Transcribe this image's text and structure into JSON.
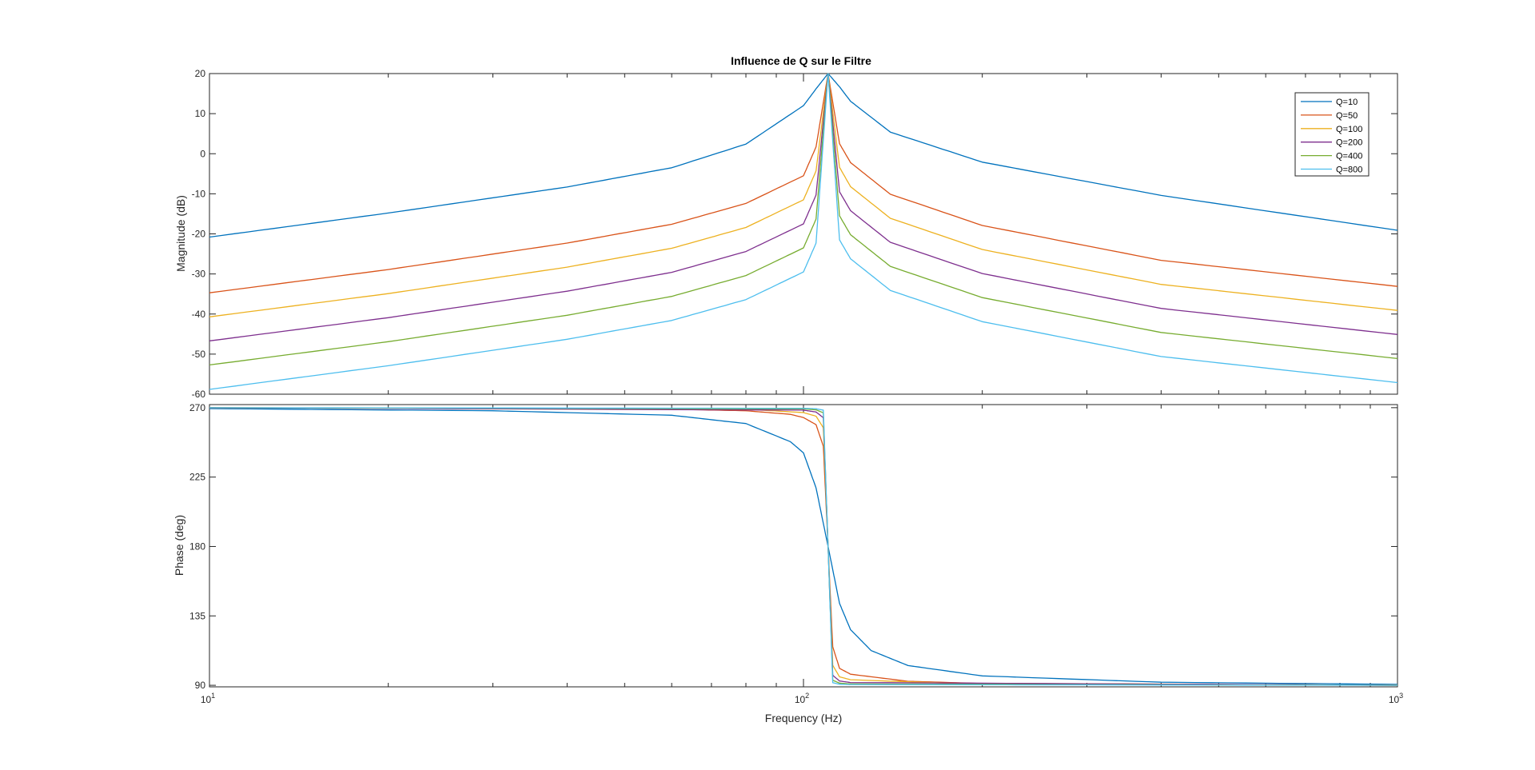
{
  "figure": {
    "title": "Influence de Q sur le  Filtre",
    "xlabel": "Frequency  (Hz)"
  },
  "chart_data": [
    {
      "type": "line",
      "panel": "magnitude",
      "title": "Influence de Q sur le  Filtre",
      "ylabel": "Magnitude (dB)",
      "xscale": "log",
      "xlim": [
        10,
        1000
      ],
      "ylim": [
        -60,
        20
      ],
      "xticks": [
        "10^1",
        "10^2",
        "10^3"
      ],
      "yticks": [
        20,
        10,
        0,
        -10,
        -20,
        -30,
        -40,
        -50,
        -60
      ],
      "grid": false,
      "legend": "top-right",
      "series": [
        {
          "name": "Q=10",
          "color": "#0072BD",
          "x": [
            10,
            20,
            40,
            60,
            80,
            100,
            105,
            110,
            115,
            120,
            140,
            200,
            400,
            1000
          ],
          "y": [
            -20.8,
            -14.8,
            -8.3,
            -3.5,
            2.4,
            12.0,
            16.2,
            20.0,
            16.7,
            13.1,
            5.4,
            -2.1,
            -10.4,
            -19.1
          ]
        },
        {
          "name": "Q=50",
          "color": "#D95319",
          "x": [
            10,
            20,
            40,
            60,
            80,
            100,
            105,
            110,
            115,
            120,
            140,
            200,
            400,
            1000
          ],
          "y": [
            -34.7,
            -28.9,
            -22.3,
            -17.6,
            -12.4,
            -5.5,
            1.7,
            20.0,
            2.5,
            -2.2,
            -10.1,
            -17.9,
            -26.6,
            -33.1
          ]
        },
        {
          "name": "Q=100",
          "color": "#EDB120",
          "x": [
            10,
            20,
            40,
            60,
            80,
            100,
            105,
            110,
            115,
            120,
            140,
            200,
            400,
            1000
          ],
          "y": [
            -40.7,
            -34.9,
            -28.3,
            -23.6,
            -18.4,
            -11.5,
            -4.3,
            20.0,
            -3.4,
            -8.2,
            -16.1,
            -23.9,
            -32.6,
            -39.1
          ]
        },
        {
          "name": "Q=200",
          "color": "#7E2F8E",
          "x": [
            10,
            20,
            40,
            60,
            80,
            100,
            105,
            110,
            115,
            120,
            140,
            200,
            400,
            1000
          ],
          "y": [
            -46.7,
            -40.9,
            -34.3,
            -29.6,
            -24.4,
            -17.5,
            -10.3,
            20.0,
            -9.5,
            -14.2,
            -22.1,
            -29.9,
            -38.6,
            -45.1
          ]
        },
        {
          "name": "Q=400",
          "color": "#77AC30",
          "x": [
            10,
            20,
            40,
            60,
            80,
            100,
            105,
            110,
            115,
            120,
            140,
            200,
            400,
            1000
          ],
          "y": [
            -52.7,
            -46.9,
            -40.3,
            -35.6,
            -30.4,
            -23.5,
            -16.3,
            20.0,
            -15.5,
            -20.2,
            -28.1,
            -35.9,
            -44.6,
            -51.1
          ]
        },
        {
          "name": "Q=800",
          "color": "#4DBEEE",
          "x": [
            10,
            20,
            40,
            60,
            80,
            100,
            105,
            110,
            115,
            120,
            140,
            200,
            400,
            1000
          ],
          "y": [
            -58.8,
            -52.9,
            -46.3,
            -41.6,
            -36.4,
            -29.5,
            -22.3,
            20.0,
            -21.5,
            -26.2,
            -34.1,
            -41.9,
            -50.6,
            -57.1
          ]
        }
      ]
    },
    {
      "type": "line",
      "panel": "phase",
      "ylabel": "Phase (deg)",
      "xlabel": "Frequency  (Hz)",
      "xscale": "log",
      "xlim": [
        10,
        1000
      ],
      "ylim": [
        89,
        272
      ],
      "xticks": [
        "10^1",
        "10^2",
        "10^3"
      ],
      "yticks": [
        270,
        225,
        180,
        135,
        90
      ],
      "grid": false,
      "series": [
        {
          "name": "Q=10",
          "color": "#0072BD",
          "x": [
            10,
            30,
            60,
            80,
            95,
            100,
            105,
            110,
            115,
            120,
            130,
            150,
            200,
            400,
            1000
          ],
          "y": [
            269.4,
            268.0,
            265.1,
            259.7,
            248.0,
            240.7,
            218.0,
            180.0,
            143.1,
            126.1,
            112.5,
            102.8,
            96.1,
            92.0,
            90.6
          ]
        },
        {
          "name": "Q=50",
          "color": "#D95319",
          "x": [
            10,
            60,
            80,
            95,
            100,
            105,
            108,
            110,
            112,
            115,
            120,
            150,
            200,
            1000
          ],
          "y": [
            269.9,
            269.0,
            268.0,
            265.7,
            263.6,
            259.0,
            245.0,
            180.0,
            115.0,
            101.0,
            97.2,
            92.6,
            91.2,
            90.1
          ]
        },
        {
          "name": "Q=100",
          "color": "#EDB120",
          "x": [
            10,
            80,
            100,
            105,
            108,
            110,
            112,
            115,
            120,
            200,
            1000
          ],
          "y": [
            270.0,
            269.0,
            266.8,
            264.5,
            257.0,
            180.0,
            103.0,
            95.5,
            93.6,
            90.6,
            90.1
          ]
        },
        {
          "name": "Q=200",
          "color": "#7E2F8E",
          "x": [
            10,
            100,
            105,
            108,
            110,
            112,
            115,
            120,
            1000
          ],
          "y": [
            270.0,
            268.4,
            267.2,
            263.5,
            180.0,
            96.5,
            92.8,
            91.8,
            90.0
          ]
        },
        {
          "name": "Q=400",
          "color": "#77AC30",
          "x": [
            10,
            100,
            105,
            108,
            110,
            112,
            115,
            120,
            1000
          ],
          "y": [
            270.0,
            269.2,
            268.6,
            266.7,
            180.0,
            93.3,
            91.4,
            90.9,
            90.0
          ]
        },
        {
          "name": "Q=800",
          "color": "#4DBEEE",
          "x": [
            10,
            100,
            105,
            108,
            110,
            112,
            115,
            120,
            1000
          ],
          "y": [
            270.0,
            269.6,
            269.3,
            268.4,
            180.0,
            91.7,
            90.7,
            90.5,
            90.0
          ]
        }
      ]
    }
  ]
}
